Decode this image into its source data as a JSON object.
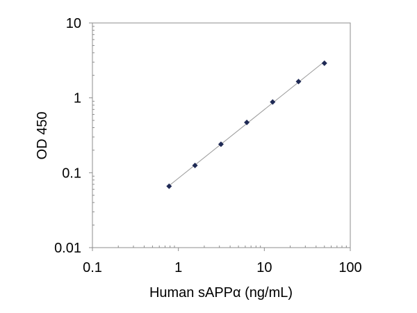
{
  "chart_data": {
    "type": "scatter",
    "title": "",
    "xlabel": "Human sAPPα (ng/mL)",
    "ylabel": "OD 450",
    "xscale": "log",
    "yscale": "log",
    "xlim": [
      0.1,
      100
    ],
    "ylim": [
      0.01,
      10
    ],
    "xticks": [
      0.1,
      1,
      10,
      100
    ],
    "xtick_labels": [
      "0.1",
      "1",
      "10",
      "100"
    ],
    "yticks": [
      0.01,
      0.1,
      1,
      10
    ],
    "ytick_labels": [
      "0.01",
      "0.1",
      "1",
      "10"
    ],
    "grid": false,
    "legend": "none",
    "series": [
      {
        "x": [
          0.78,
          1.56,
          3.13,
          6.25,
          12.5,
          25,
          50
        ],
        "y": [
          0.066,
          0.125,
          0.24,
          0.47,
          0.88,
          1.65,
          2.9
        ],
        "marker": "diamond",
        "color": "#1f2a55",
        "trendline": true,
        "trendline_color": "#9a9a9a"
      }
    ]
  }
}
